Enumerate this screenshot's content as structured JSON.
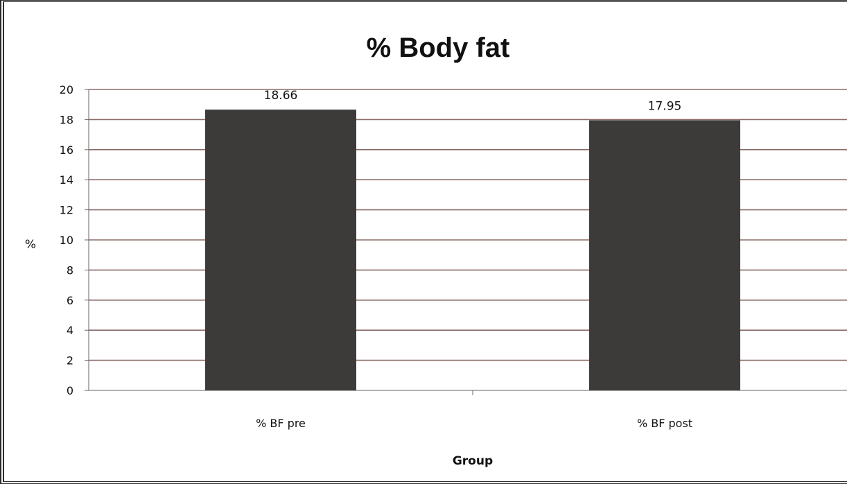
{
  "chart_data": {
    "type": "bar",
    "title": "% Body fat",
    "xlabel": "Group",
    "ylabel": "%",
    "categories": [
      "% BF pre",
      "% BF post"
    ],
    "values": [
      18.66,
      17.95
    ],
    "data_labels": [
      "18.66",
      "17.95"
    ],
    "ylim": [
      0,
      20
    ],
    "yticks": [
      "0",
      "2",
      "4",
      "6",
      "8",
      "10",
      "12",
      "14",
      "16",
      "18",
      "20"
    ],
    "grid": true,
    "legend": "none",
    "colors": {
      "bar": "#3d3b3a",
      "grid": "#8a6b66",
      "axis": "#666666"
    }
  }
}
